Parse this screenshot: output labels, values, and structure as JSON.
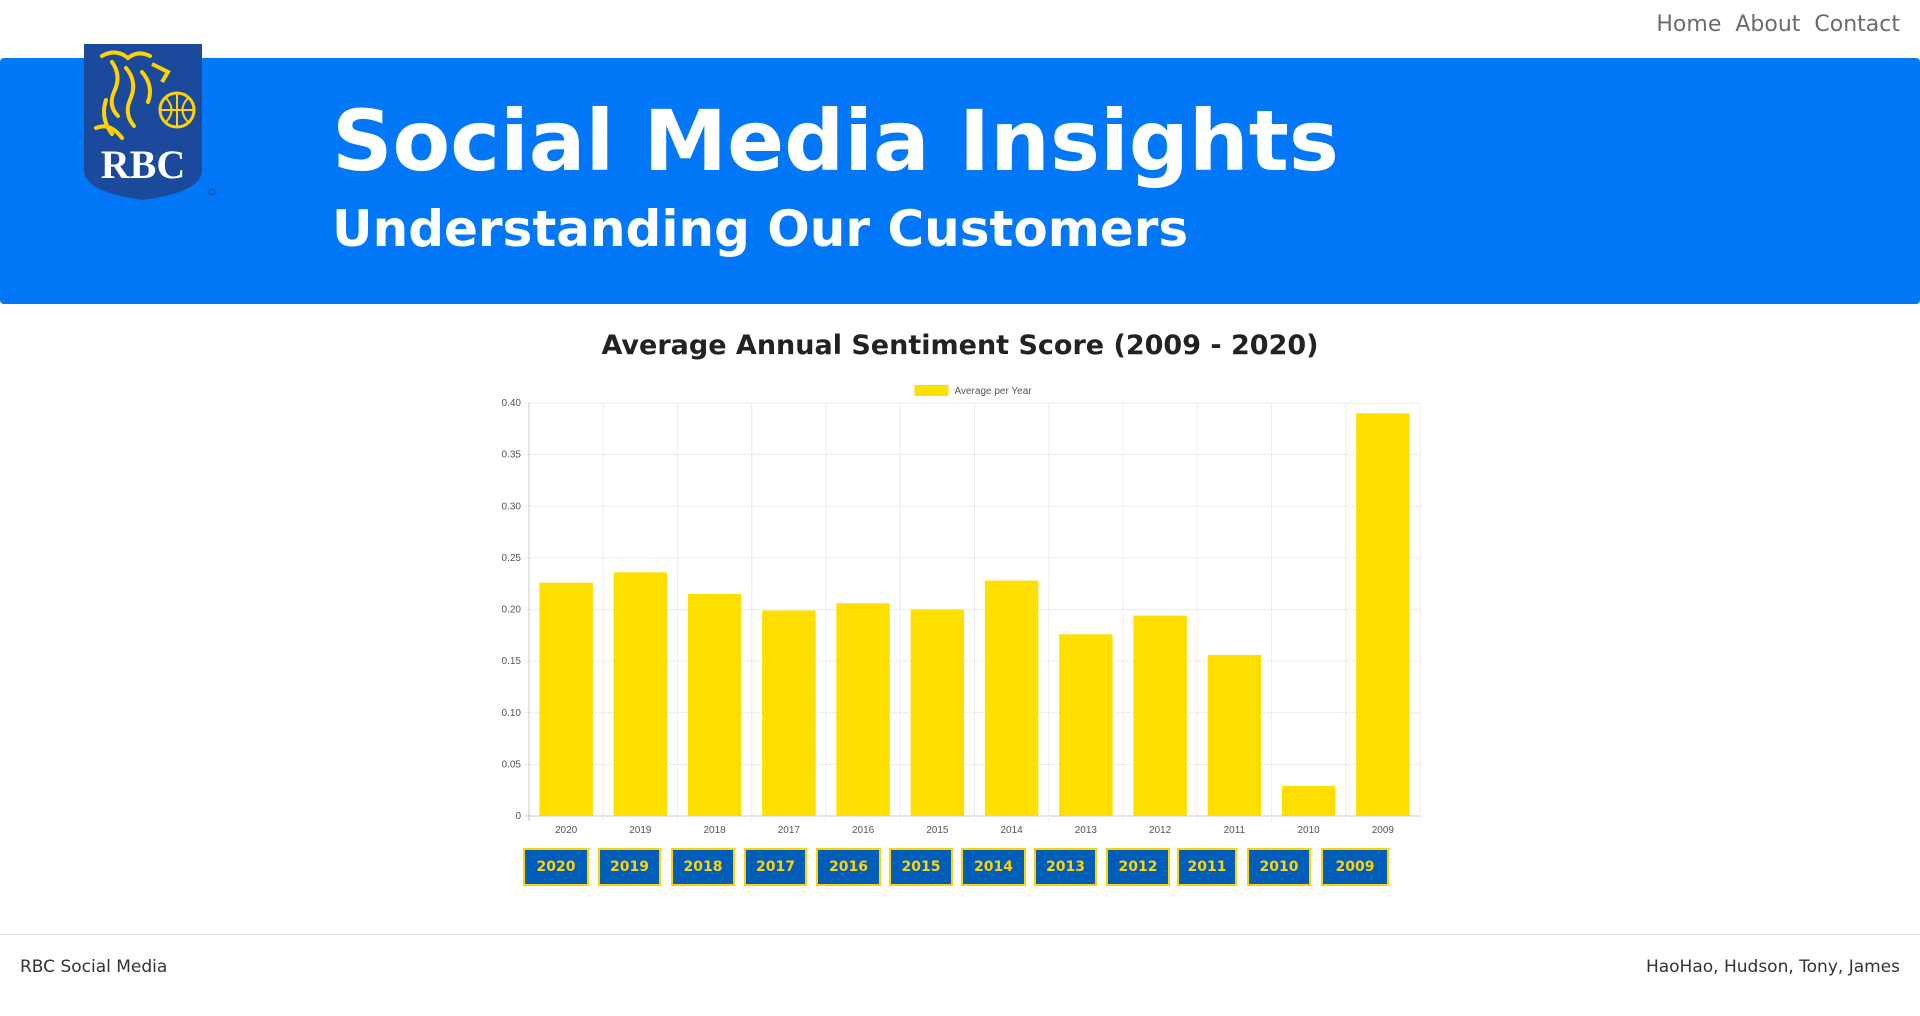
{
  "nav": {
    "items": [
      "Home",
      "About",
      "Contact"
    ]
  },
  "hero": {
    "logo_text": "RBC",
    "title": "Social Media Insights",
    "subtitle": "Understanding Our Customers"
  },
  "colors": {
    "hero_bg": "#0277f8",
    "bar": "#ffdf00",
    "button_bg": "#005eb8",
    "button_text": "#ffd200",
    "logo_blue": "#1b4a9c",
    "logo_gold": "#ffd200"
  },
  "chart_title": "Average Annual Sentiment Score (2009 - 2020)",
  "chart_data": {
    "type": "bar",
    "categories": [
      "2020",
      "2019",
      "2018",
      "2017",
      "2016",
      "2015",
      "2014",
      "2013",
      "2012",
      "2011",
      "2010",
      "2009"
    ],
    "series": [
      {
        "name": "Average per Year",
        "values": [
          0.226,
          0.236,
          0.215,
          0.199,
          0.206,
          0.2,
          0.228,
          0.176,
          0.194,
          0.156,
          0.029,
          0.39
        ]
      }
    ],
    "yticks": [
      "0",
      "0.05",
      "0.10",
      "0.15",
      "0.20",
      "0.25",
      "0.30",
      "0.35",
      "0.40"
    ],
    "ylim": [
      0,
      0.4
    ],
    "grid": true,
    "legend": "top-center"
  },
  "year_buttons": [
    "2020",
    "2019",
    "2018",
    "2017",
    "2016",
    "2015",
    "2014",
    "2013",
    "2012",
    "2011",
    "2010",
    "2009"
  ],
  "footer": {
    "left": "RBC Social Media",
    "right": "HaoHao, Hudson, Tony, James"
  }
}
